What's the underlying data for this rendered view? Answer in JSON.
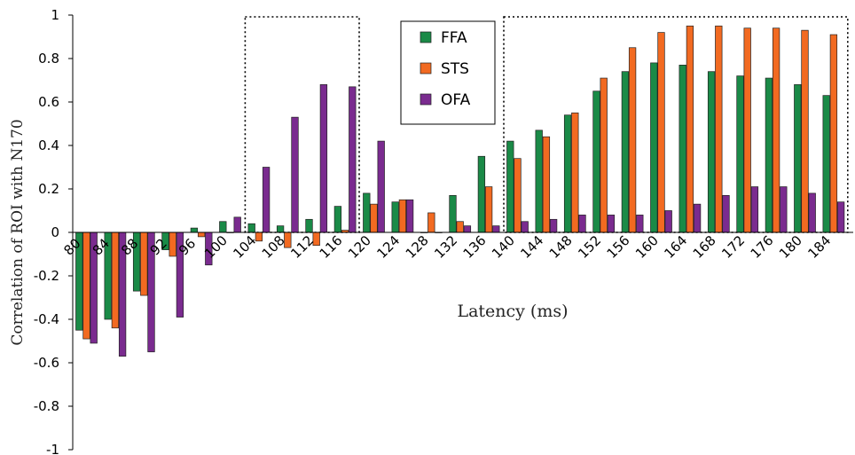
{
  "chart_data": {
    "type": "bar",
    "xlabel": "Latency (ms)",
    "ylabel": "Correlation of ROI with N170",
    "ylim": [
      -1,
      1
    ],
    "yticks": [
      -1,
      -0.8,
      -0.6,
      -0.4,
      -0.2,
      0,
      0.2,
      0.4,
      0.6,
      0.8,
      1
    ],
    "x_tick_labels": [
      "80",
      "84",
      "88",
      "92",
      "96",
      "100",
      "104",
      "108",
      "112",
      "116",
      "120",
      "124",
      "128",
      "132",
      "136",
      "140",
      "144",
      "148",
      "152",
      "156",
      "160",
      "164",
      "168",
      "172",
      "176",
      "180",
      "184"
    ],
    "categories": [
      80,
      84,
      88,
      92,
      96,
      100,
      104,
      108,
      112,
      116,
      120,
      124,
      128,
      132,
      136,
      140,
      144,
      148,
      152,
      156,
      160,
      164,
      168,
      172,
      176,
      180,
      184
    ],
    "legend": {
      "position": "top-center",
      "entries": [
        "FFA",
        "STS",
        "OFA"
      ]
    },
    "series": [
      {
        "name": "FFA",
        "color": "#1a8a47",
        "values": [
          -0.45,
          -0.4,
          -0.27,
          -0.08,
          0.02,
          0.05,
          0.04,
          0.03,
          0.06,
          0.12,
          0.18,
          0.14,
          0.0,
          0.17,
          0.35,
          0.42,
          0.47,
          0.54,
          0.65,
          0.74,
          0.78,
          0.77,
          0.74,
          0.72,
          0.71,
          0.68,
          0.63
        ]
      },
      {
        "name": "STS",
        "color": "#f26a21",
        "values": [
          -0.49,
          -0.44,
          -0.29,
          -0.11,
          -0.02,
          0.0,
          -0.04,
          -0.07,
          -0.06,
          0.01,
          0.13,
          0.15,
          0.09,
          0.05,
          0.21,
          0.34,
          0.44,
          0.55,
          0.71,
          0.85,
          0.92,
          0.95,
          0.95,
          0.94,
          0.94,
          0.93,
          0.91
        ]
      },
      {
        "name": "OFA",
        "color": "#7a2b8f",
        "values": [
          -0.51,
          -0.57,
          -0.55,
          -0.39,
          -0.15,
          0.07,
          0.3,
          0.53,
          0.68,
          0.67,
          0.42,
          0.15,
          0.0,
          0.03,
          0.03,
          0.05,
          0.06,
          0.08,
          0.08,
          0.08,
          0.1,
          0.13,
          0.17,
          0.21,
          0.21,
          0.18,
          0.14
        ]
      }
    ],
    "highlight_windows_ms": [
      [
        104,
        120
      ],
      [
        140,
        188
      ]
    ],
    "grid": false
  }
}
